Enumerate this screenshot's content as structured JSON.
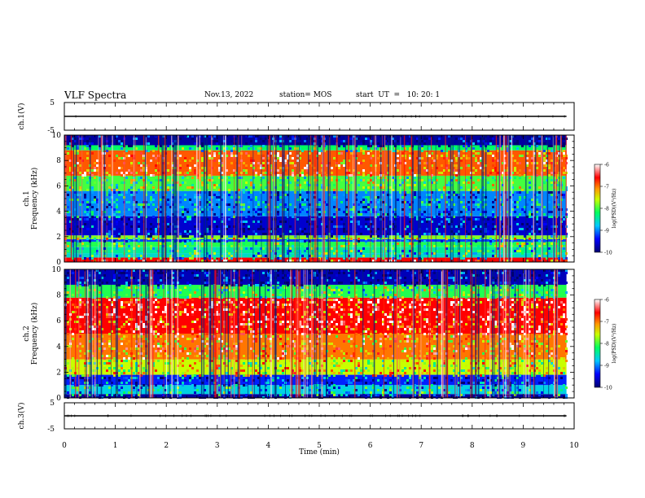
{
  "header": {
    "title": "VLF Spectra",
    "date": "Nov.13, 2022",
    "station": "station= MOS",
    "start_ut": "start  UT  =   10: 20: 1"
  },
  "chart_data": [
    {
      "type": "line",
      "panel": "ch1-waveform",
      "ylabel": "ch.1(V)",
      "ylim": [
        -5,
        5
      ],
      "y_ticks": [
        "5",
        "-5"
      ],
      "xlim": [
        0,
        10
      ],
      "series": [
        {
          "x": [
            0,
            9.85
          ],
          "y": [
            0,
            0
          ]
        }
      ]
    },
    {
      "type": "heatmap",
      "panel": "ch1-spectrogram",
      "ylabel": "ch.1\nFrequency (kHz)",
      "ylim": [
        0,
        10
      ],
      "y_ticks": [
        "0",
        "2",
        "4",
        "6",
        "8",
        "10"
      ],
      "xlim": [
        0,
        10
      ],
      "colorbar": {
        "label": "log(PSD)(V²/Hz)",
        "range": [
          -10,
          -6
        ],
        "ticks": [
          "-6",
          "-7",
          "-8",
          "-9",
          "-10"
        ]
      },
      "bands_khz": [
        {
          "f": [
            0,
            0.35
          ],
          "level": -6.6
        },
        {
          "f": [
            0.35,
            0.7
          ],
          "level": -8.6
        },
        {
          "f": [
            0.7,
            1.2
          ],
          "level": -8.4
        },
        {
          "f": [
            1.2,
            1.6
          ],
          "level": -8.1
        },
        {
          "f": [
            1.6,
            1.8
          ],
          "level": -9.2
        },
        {
          "f": [
            1.8,
            2.1
          ],
          "level": -7.8
        },
        {
          "f": [
            2.1,
            3.6
          ],
          "level": -9.6
        },
        {
          "f": [
            3.6,
            5.6
          ],
          "level": -9.0
        },
        {
          "f": [
            5.6,
            6.8
          ],
          "level": -8.0
        },
        {
          "f": [
            6.8,
            8.8
          ],
          "level": -6.9
        },
        {
          "f": [
            8.8,
            9.2
          ],
          "level": -8.2
        },
        {
          "f": [
            9.2,
            10
          ],
          "level": -9.8
        }
      ],
      "x_end_min": 9.85
    },
    {
      "type": "heatmap",
      "panel": "ch2-spectrogram",
      "ylabel": "ch.2\nFrequency (kHz)",
      "ylim": [
        0,
        10
      ],
      "y_ticks": [
        "0",
        "2",
        "4",
        "6",
        "8",
        "10"
      ],
      "xlim": [
        0,
        10
      ],
      "colorbar": {
        "label": "log(PSD)(V²/Hz)",
        "range": [
          -10,
          -6
        ],
        "ticks": [
          "-6",
          "-7",
          "-8",
          "-9",
          "-10"
        ]
      },
      "bands_khz": [
        {
          "f": [
            0,
            0.3
          ],
          "level": -9.8
        },
        {
          "f": [
            0.3,
            1.0
          ],
          "level": -8.7
        },
        {
          "f": [
            1.0,
            1.8
          ],
          "level": -9.3
        },
        {
          "f": [
            1.8,
            3.0
          ],
          "level": -7.6
        },
        {
          "f": [
            3.0,
            5.0
          ],
          "level": -7.0
        },
        {
          "f": [
            5.0,
            7.8
          ],
          "level": -6.6
        },
        {
          "f": [
            7.8,
            8.8
          ],
          "level": -8.1
        },
        {
          "f": [
            8.8,
            10
          ],
          "level": -9.7
        }
      ],
      "x_end_min": 9.85
    },
    {
      "type": "line",
      "panel": "ch3-waveform",
      "ylabel": "ch.3(V)",
      "ylim": [
        -5,
        5
      ],
      "y_ticks": [
        "5",
        "-5"
      ],
      "xlim": [
        0,
        10
      ],
      "xlabel": "Time  (min)",
      "x_ticks": [
        "0",
        "1",
        "2",
        "3",
        "4",
        "5",
        "6",
        "7",
        "8",
        "9",
        "10"
      ],
      "series": [
        {
          "x": [
            0,
            9.85
          ],
          "y": [
            0,
            0
          ]
        }
      ]
    }
  ]
}
